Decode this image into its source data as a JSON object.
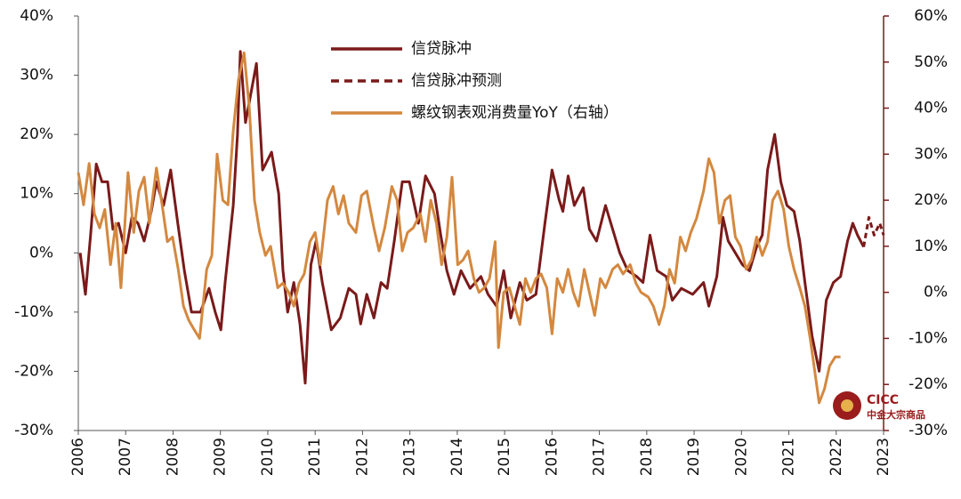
{
  "chart_data": {
    "type": "line",
    "xlim": [
      2006,
      2023
    ],
    "xticks": [
      2006,
      2007,
      2008,
      2009,
      2010,
      2011,
      2012,
      2013,
      2014,
      2015,
      2016,
      2017,
      2018,
      2019,
      2020,
      2021,
      2022,
      2023
    ],
    "ylim": [
      -30,
      40
    ],
    "yticks": [
      {
        "value": -30,
        "label": "-30%"
      },
      {
        "value": -20,
        "label": "-20%"
      },
      {
        "value": -10,
        "label": "-10%"
      },
      {
        "value": 0,
        "label": "0%"
      },
      {
        "value": 10,
        "label": "10%"
      },
      {
        "value": 20,
        "label": "20%"
      },
      {
        "value": 30,
        "label": "30%"
      },
      {
        "value": 40,
        "label": "40%"
      }
    ],
    "y2lim": [
      -30,
      60
    ],
    "y2ticks": [
      {
        "value": -30,
        "label": "-30%"
      },
      {
        "value": -20,
        "label": "-20%"
      },
      {
        "value": -10,
        "label": "-10%"
      },
      {
        "value": 0,
        "label": "0%"
      },
      {
        "value": 10,
        "label": "10%"
      },
      {
        "value": 20,
        "label": "20%"
      },
      {
        "value": 30,
        "label": "30%"
      },
      {
        "value": 40,
        "label": "40%"
      },
      {
        "value": 50,
        "label": "50%"
      },
      {
        "value": 60,
        "label": "60%"
      }
    ],
    "y2_color": "#7a1a1a",
    "legend": "top",
    "watermark": "CICC",
    "watermark_sub": "中金大宗商品",
    "series": [
      {
        "name": "信贷脉冲",
        "color": "#7a1a1a",
        "dash": false,
        "x": [
          2006.04,
          2006.15,
          2006.26,
          2006.38,
          2006.5,
          2006.62,
          2006.73,
          2006.85,
          2007.0,
          2007.13,
          2007.26,
          2007.39,
          2007.54,
          2007.65,
          2007.8,
          2007.95,
          2008.1,
          2008.24,
          2008.39,
          2008.58,
          2008.76,
          2008.89,
          2009.01,
          2009.1,
          2009.27,
          2009.36,
          2009.42,
          2009.53,
          2009.76,
          2009.89,
          2010.08,
          2010.23,
          2010.32,
          2010.42,
          2010.55,
          2010.68,
          2010.79,
          2010.91,
          2011.02,
          2011.15,
          2011.34,
          2011.53,
          2011.71,
          2011.86,
          2011.96,
          2012.09,
          2012.24,
          2012.39,
          2012.52,
          2012.67,
          2012.84,
          2012.99,
          2013.18,
          2013.33,
          2013.52,
          2013.65,
          2013.78,
          2013.93,
          2014.08,
          2014.27,
          2014.5,
          2014.65,
          2014.83,
          2014.98,
          2015.13,
          2015.32,
          2015.47,
          2015.66,
          2015.85,
          2016.0,
          2016.15,
          2016.23,
          2016.34,
          2016.47,
          2016.66,
          2016.79,
          2016.94,
          2017.13,
          2017.28,
          2017.43,
          2017.6,
          2017.79,
          2017.92,
          2018.07,
          2018.22,
          2018.41,
          2018.54,
          2018.73,
          2018.97,
          2019.2,
          2019.31,
          2019.48,
          2019.61,
          2019.72,
          2019.87,
          2020.02,
          2020.17,
          2020.32,
          2020.44,
          2020.55,
          2020.7,
          2020.83,
          2020.96,
          2021.11,
          2021.23,
          2021.34,
          2021.49,
          2021.64,
          2021.79,
          2021.94,
          2022.09,
          2022.24,
          2022.35,
          2022.45,
          2022.58
        ],
        "values": [
          0,
          -7,
          3,
          15,
          12,
          12,
          4,
          5,
          0,
          6,
          5,
          2,
          7,
          12,
          8,
          14,
          5,
          -3,
          -10,
          -10,
          -6,
          -10,
          -13,
          -5,
          8,
          20,
          34,
          22,
          32,
          14,
          17,
          10,
          -3,
          -10,
          -5,
          -12,
          -22,
          -2,
          2,
          -5,
          -13,
          -11,
          -6,
          -7,
          -12,
          -7,
          -11,
          -5,
          -6,
          2,
          12,
          12,
          5,
          13,
          10,
          3,
          -3,
          -7,
          -3,
          -6,
          -4,
          -7,
          -9,
          -3,
          -11,
          -5,
          -8,
          -7,
          5,
          14,
          9,
          7,
          13,
          8,
          11,
          4,
          2,
          8,
          4,
          0,
          -3,
          -4,
          -5,
          3,
          -3,
          -4,
          -8,
          -6,
          -7,
          -5,
          -9,
          -4,
          6,
          2,
          0,
          -2,
          -3,
          1,
          3,
          14,
          20,
          12,
          8,
          7,
          2,
          -5,
          -14,
          -20,
          -8,
          -5,
          -4,
          2,
          5,
          3,
          1
        ]
      },
      {
        "name": "信贷脉冲预测",
        "color": "#7a1a1a",
        "dash": true,
        "x": [
          2022.58,
          2022.69,
          2022.8,
          2022.92,
          2023.0
        ],
        "values": [
          1,
          6,
          3,
          5,
          3
        ]
      },
      {
        "name": "螺纹钢表观消费量YoY（右轴）",
        "color": "#d4883f",
        "dash": false,
        "axis": "y2",
        "x": [
          2006.0,
          2006.11,
          2006.23,
          2006.34,
          2006.45,
          2006.56,
          2006.68,
          2006.79,
          2006.9,
          2007.05,
          2007.17,
          2007.28,
          2007.39,
          2007.5,
          2007.65,
          2007.77,
          2007.88,
          2007.99,
          2008.11,
          2008.22,
          2008.33,
          2008.44,
          2008.56,
          2008.71,
          2008.82,
          2008.93,
          2009.05,
          2009.16,
          2009.27,
          2009.38,
          2009.5,
          2009.61,
          2009.72,
          2009.83,
          2009.95,
          2010.06,
          2010.21,
          2010.32,
          2010.44,
          2010.55,
          2010.66,
          2010.77,
          2010.89,
          2011.0,
          2011.11,
          2011.26,
          2011.38,
          2011.49,
          2011.6,
          2011.71,
          2011.86,
          2011.98,
          2012.09,
          2012.24,
          2012.35,
          2012.47,
          2012.62,
          2012.73,
          2012.84,
          2012.95,
          2013.07,
          2013.22,
          2013.33,
          2013.44,
          2013.56,
          2013.67,
          2013.78,
          2013.89,
          2014.01,
          2014.12,
          2014.23,
          2014.35,
          2014.46,
          2014.57,
          2014.68,
          2014.8,
          2014.87,
          2014.98,
          2015.1,
          2015.21,
          2015.32,
          2015.44,
          2015.55,
          2015.66,
          2015.77,
          2015.89,
          2016.0,
          2016.11,
          2016.23,
          2016.34,
          2016.45,
          2016.56,
          2016.68,
          2016.79,
          2016.9,
          2017.02,
          2017.13,
          2017.28,
          2017.39,
          2017.5,
          2017.65,
          2017.77,
          2017.88,
          2018.03,
          2018.14,
          2018.26,
          2018.37,
          2018.48,
          2018.59,
          2018.71,
          2018.82,
          2018.93,
          2019.05,
          2019.2,
          2019.31,
          2019.42,
          2019.53,
          2019.65,
          2019.76,
          2019.87,
          2019.98,
          2020.1,
          2020.21,
          2020.32,
          2020.44,
          2020.55,
          2020.66,
          2020.77,
          2020.89,
          2021.0,
          2021.11,
          2021.23,
          2021.34,
          2021.45,
          2021.56,
          2021.64,
          2021.75,
          2021.86,
          2021.98,
          2022.09
        ],
        "values": [
          26,
          19,
          28,
          17,
          14,
          18,
          6,
          15,
          1,
          26,
          13,
          22,
          25,
          15,
          27,
          19,
          11,
          12,
          5,
          -3,
          -6,
          -8,
          -10,
          5,
          8,
          30,
          20,
          19,
          35,
          46,
          52,
          40,
          20,
          13,
          8,
          10,
          1,
          2,
          0,
          -3,
          2,
          4,
          11,
          13,
          6,
          20,
          23,
          17,
          21,
          15,
          13,
          21,
          22,
          14,
          9,
          14,
          23,
          20,
          9,
          13,
          14,
          17,
          11,
          20,
          15,
          6,
          12,
          25,
          6,
          7,
          9,
          3,
          0,
          1,
          3,
          11,
          -12,
          0,
          1,
          -3,
          -7,
          3,
          0,
          3,
          4,
          1,
          -9,
          3,
          0,
          5,
          0,
          -3,
          5,
          0,
          -5,
          3,
          1,
          5,
          6,
          4,
          6,
          2,
          0,
          -1,
          -3,
          -7,
          -3,
          5,
          2,
          12,
          9,
          13,
          16,
          22,
          29,
          26,
          15,
          20,
          21,
          12,
          10,
          5,
          7,
          12,
          8,
          11,
          20,
          22,
          18,
          10,
          5,
          1,
          -3,
          -10,
          -18,
          -24,
          -21,
          -16,
          -14,
          -14
        ]
      }
    ]
  }
}
